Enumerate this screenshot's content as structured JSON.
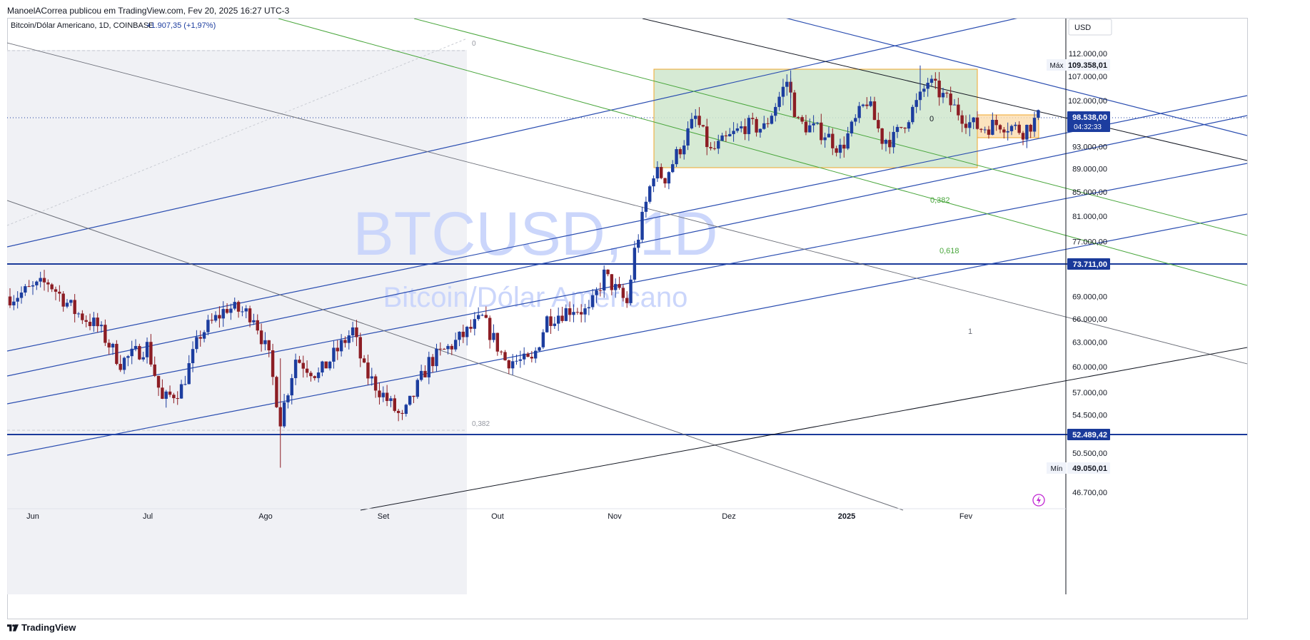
{
  "header": {
    "publish_text": "ManoelACorrea publicou em TradingView.com, Fev 20, 2025 16:27 UTC-3"
  },
  "footer": {
    "brand": "TradingView",
    "logo_icon": "tradingview-logo-icon"
  },
  "colors": {
    "up": "#1c3d9f",
    "down": "#8c1d24",
    "channel": "#2a4db0",
    "fib_green": "#49a63c",
    "grey_line": "#6b6e78",
    "black_line": "#131722",
    "level_line": "#1a3a9a",
    "range_fill": "#cfe6cc",
    "range_border": "#f0a72b",
    "small_box": "#fbdcae",
    "watermark": "#cbd6fb",
    "last_price_bg": "#1c3d9f"
  },
  "chart_data": {
    "type": "candlestick",
    "symbol": "Bitcoin/Dólar Americano",
    "interval": "1D",
    "exchange": "COINBASE",
    "change": "+1.907,35 (+1,97%)",
    "watermark_symbol": "BTCUSD, 1D",
    "watermark_name": "Bitcoin/Dólar Americano",
    "currency": "USD",
    "y_axis_ticks": [
      "112.000,00",
      "107.000,00",
      "102.000,00",
      "93.000,00",
      "89.000,00",
      "85.000,00",
      "81.000,00",
      "77.000,00",
      "69.000,00",
      "66.000,00",
      "63.000,00",
      "60.000,00",
      "57.000,00",
      "54.500,00",
      "50.500,00",
      "46.700,00"
    ],
    "x_axis_ticks": [
      "Jun",
      "Jul",
      "Ago",
      "Set",
      "Out",
      "Nov",
      "Dez",
      "2025",
      "Fev"
    ],
    "price_badges": {
      "max_label": "Máx",
      "max_value": "109.358,01",
      "last_price": "98.538,00",
      "countdown": "04:32:33",
      "level_upper": "73.711,00",
      "level_lower": "52.489,42",
      "min_label": "Mín",
      "min_value": "49.050,01"
    },
    "fib_labels": [
      "0",
      "0,382",
      "0",
      "0,382",
      "0,618",
      "1"
    ],
    "ohlc_points": [
      {
        "date": "2024-05-27",
        "close": 69000
      },
      {
        "date": "2024-06-05",
        "close": 71000
      },
      {
        "date": "2024-06-12",
        "close": 67000
      },
      {
        "date": "2024-06-18",
        "close": 65000
      },
      {
        "date": "2024-06-24",
        "close": 60500
      },
      {
        "date": "2024-07-01",
        "close": 62500
      },
      {
        "date": "2024-07-05",
        "close": 56000
      },
      {
        "date": "2024-07-10",
        "close": 57500
      },
      {
        "date": "2024-07-15",
        "close": 64000
      },
      {
        "date": "2024-07-22",
        "close": 67500
      },
      {
        "date": "2024-07-29",
        "close": 66500
      },
      {
        "date": "2024-08-02",
        "close": 61000
      },
      {
        "date": "2024-08-05",
        "close": 54000
      },
      {
        "date": "2024-08-09",
        "close": 61000
      },
      {
        "date": "2024-08-15",
        "close": 59000
      },
      {
        "date": "2024-08-24",
        "close": 64500
      },
      {
        "date": "2024-08-27",
        "close": 59500
      },
      {
        "date": "2024-09-06",
        "close": 54000
      },
      {
        "date": "2024-09-13",
        "close": 60500
      },
      {
        "date": "2024-09-20",
        "close": 63000
      },
      {
        "date": "2024-09-27",
        "close": 66000
      },
      {
        "date": "2024-10-03",
        "close": 60800
      },
      {
        "date": "2024-10-10",
        "close": 60500
      },
      {
        "date": "2024-10-14",
        "close": 66000
      },
      {
        "date": "2024-10-21",
        "close": 67500
      },
      {
        "date": "2024-10-25",
        "close": 66800
      },
      {
        "date": "2024-10-29",
        "close": 72000
      },
      {
        "date": "2024-11-04",
        "close": 68000
      },
      {
        "date": "2024-11-06",
        "close": 75500
      },
      {
        "date": "2024-11-11",
        "close": 88500
      },
      {
        "date": "2024-11-14",
        "close": 87500
      },
      {
        "date": "2024-11-22",
        "close": 98500
      },
      {
        "date": "2024-11-26",
        "close": 92000
      },
      {
        "date": "2024-12-05",
        "close": 97000
      },
      {
        "date": "2024-12-10",
        "close": 96500
      },
      {
        "date": "2024-12-16",
        "close": 106000
      },
      {
        "date": "2024-12-19",
        "close": 97500
      },
      {
        "date": "2024-12-26",
        "close": 95500
      },
      {
        "date": "2024-12-30",
        "close": 92500
      },
      {
        "date": "2025-01-06",
        "close": 102000
      },
      {
        "date": "2025-01-10",
        "close": 94500
      },
      {
        "date": "2025-01-13",
        "close": 94500
      },
      {
        "date": "2025-01-20",
        "close": 102500
      },
      {
        "date": "2025-01-22",
        "close": 106000
      },
      {
        "date": "2025-01-27",
        "close": 102000
      },
      {
        "date": "2025-02-02",
        "close": 97500
      },
      {
        "date": "2025-02-05",
        "close": 96500
      },
      {
        "date": "2025-02-10",
        "close": 97500
      },
      {
        "date": "2025-02-16",
        "close": 96000
      },
      {
        "date": "2025-02-20",
        "close": 98538
      }
    ]
  }
}
